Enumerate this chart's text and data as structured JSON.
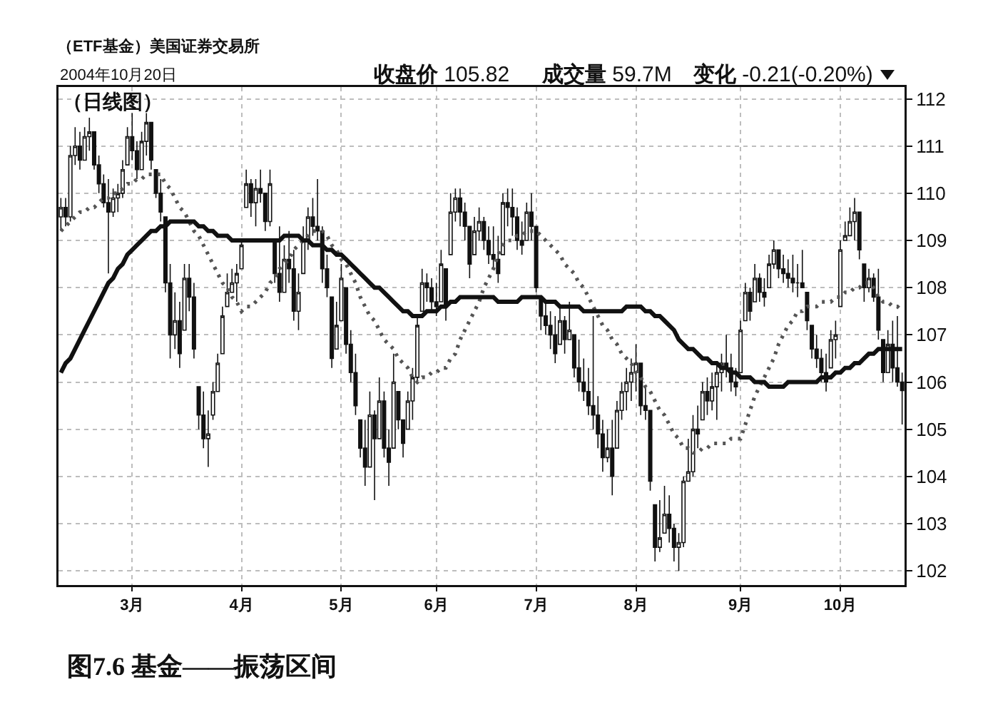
{
  "chart_data": {
    "type": "candlestick",
    "title": "（ETF基金）美国证券交易所",
    "subtitle": "（日线图）",
    "annotations": [
      "2004年10月20日",
      "收盘价 105.82",
      "成交量 59.7M",
      "变化 -0.21(-0.20%)",
      "图7.6 基金——振荡区间"
    ],
    "color": "#111111",
    "categories": [
      null,
      null,
      null,
      null,
      null,
      null,
      null,
      null,
      null,
      null,
      null,
      null,
      null,
      null,
      null,
      "3月",
      null,
      null,
      null,
      null,
      null,
      null,
      null,
      null,
      null,
      null,
      null,
      null,
      null,
      null,
      null,
      null,
      null,
      null,
      null,
      null,
      null,
      null,
      "4月",
      null,
      null,
      null,
      null,
      null,
      null,
      null,
      null,
      null,
      null,
      null,
      null,
      null,
      null,
      null,
      null,
      null,
      null,
      null,
      null,
      "5月",
      null,
      null,
      null,
      null,
      null,
      null,
      null,
      null,
      null,
      null,
      null,
      null,
      null,
      null,
      null,
      null,
      null,
      null,
      null,
      "6月",
      null,
      null,
      null,
      null,
      null,
      null,
      null,
      null,
      null,
      null,
      null,
      null,
      null,
      null,
      null,
      null,
      null,
      null,
      null,
      null,
      "7月",
      null,
      null,
      null,
      null,
      null,
      null,
      null,
      null,
      null,
      null,
      null,
      null,
      null,
      null,
      null,
      null,
      null,
      null,
      null,
      null,
      "8月",
      null,
      null,
      null,
      null,
      null,
      null,
      null,
      null,
      null,
      null,
      null,
      null,
      null,
      null,
      null,
      null,
      null,
      null,
      null,
      null,
      null,
      "9月",
      null,
      null,
      null,
      null,
      null,
      null,
      null,
      null,
      null,
      null,
      null,
      null,
      null,
      null,
      null,
      null,
      null,
      null,
      null,
      null,
      "10月",
      null,
      null,
      null,
      null,
      null,
      null,
      null,
      null,
      null,
      null,
      null,
      null,
      null
    ],
    "ohlc": [
      [
        109.5,
        109.9,
        109.2,
        109.7
      ],
      [
        109.7,
        109.9,
        109.3,
        109.5
      ],
      [
        109.5,
        111.0,
        109.4,
        110.8
      ],
      [
        110.8,
        111.4,
        110.6,
        111.0
      ],
      [
        111.0,
        111.3,
        110.5,
        110.7
      ],
      [
        110.7,
        111.4,
        110.7,
        111.2
      ],
      [
        111.2,
        111.6,
        110.9,
        111.3
      ],
      [
        111.3,
        111.3,
        110.5,
        110.6
      ],
      [
        110.6,
        110.8,
        110.0,
        110.2
      ],
      [
        110.2,
        110.4,
        109.7,
        109.8
      ],
      [
        109.8,
        110.3,
        108.3,
        109.6
      ],
      [
        109.6,
        110.1,
        109.5,
        109.9
      ],
      [
        109.9,
        110.2,
        109.6,
        110.0
      ],
      [
        110.0,
        110.7,
        109.9,
        110.5
      ],
      [
        110.6,
        111.4,
        110.6,
        111.2
      ],
      [
        111.2,
        111.7,
        110.7,
        110.9
      ],
      [
        110.9,
        111.1,
        110.3,
        110.5
      ],
      [
        110.5,
        111.3,
        110.5,
        111.1
      ],
      [
        111.1,
        111.7,
        110.8,
        111.5
      ],
      [
        111.5,
        111.5,
        110.5,
        110.7
      ],
      [
        110.5,
        110.5,
        109.9,
        110.0
      ],
      [
        110.0,
        110.3,
        109.4,
        109.6
      ],
      [
        109.5,
        109.5,
        107.9,
        108.1
      ],
      [
        108.1,
        108.5,
        106.5,
        107.0
      ],
      [
        107.0,
        107.9,
        106.7,
        107.3
      ],
      [
        107.3,
        107.7,
        106.3,
        106.6
      ],
      [
        107.1,
        108.5,
        107.1,
        108.2
      ],
      [
        108.2,
        108.5,
        107.5,
        107.8
      ],
      [
        107.8,
        108.1,
        106.5,
        106.7
      ],
      [
        105.9,
        105.9,
        105.0,
        105.3
      ],
      [
        105.3,
        105.8,
        104.6,
        104.8
      ],
      [
        104.8,
        105.4,
        104.2,
        104.9
      ],
      [
        105.3,
        106.0,
        105.2,
        105.8
      ],
      [
        105.8,
        106.6,
        105.8,
        106.4
      ],
      [
        106.6,
        107.6,
        106.6,
        107.4
      ],
      [
        107.6,
        108.3,
        107.6,
        107.9
      ],
      [
        107.9,
        108.4,
        107.9,
        108.1
      ],
      [
        108.1,
        108.5,
        107.7,
        108.3
      ],
      [
        108.4,
        109.0,
        108.4,
        108.9
      ],
      [
        109.7,
        110.5,
        109.7,
        110.2
      ],
      [
        110.2,
        110.3,
        109.5,
        109.8
      ],
      [
        109.8,
        110.3,
        109.3,
        110.1
      ],
      [
        110.1,
        110.5,
        109.8,
        110.0
      ],
      [
        110.0,
        110.0,
        109.2,
        109.4
      ],
      [
        109.4,
        110.5,
        109.3,
        110.2
      ],
      [
        109.0,
        109.0,
        108.1,
        108.3
      ],
      [
        108.3,
        109.3,
        107.7,
        107.9
      ],
      [
        107.9,
        108.9,
        107.9,
        108.6
      ],
      [
        108.6,
        109.2,
        108.1,
        108.4
      ],
      [
        108.4,
        108.8,
        107.3,
        107.5
      ],
      [
        107.5,
        108.3,
        107.1,
        107.9
      ],
      [
        108.3,
        109.3,
        108.3,
        109.0
      ],
      [
        109.0,
        109.7,
        108.8,
        109.5
      ],
      [
        109.5,
        109.9,
        109.1,
        109.3
      ],
      [
        109.3,
        110.3,
        109.0,
        109.2
      ],
      [
        109.2,
        109.3,
        108.1,
        108.4
      ],
      [
        108.4,
        108.7,
        107.8,
        108.0
      ],
      [
        107.8,
        107.8,
        106.3,
        106.5
      ],
      [
        106.7,
        107.7,
        106.7,
        107.2
      ],
      [
        107.3,
        108.5,
        107.3,
        108.2
      ],
      [
        108.0,
        108.0,
        106.6,
        106.8
      ],
      [
        106.8,
        107.1,
        106.0,
        106.2
      ],
      [
        106.2,
        106.6,
        105.3,
        105.5
      ],
      [
        105.2,
        105.2,
        104.4,
        104.6
      ],
      [
        104.6,
        105.2,
        103.8,
        104.2
      ],
      [
        104.2,
        105.8,
        104.2,
        105.3
      ],
      [
        105.3,
        105.4,
        103.5,
        104.8
      ],
      [
        104.8,
        106.1,
        104.8,
        105.6
      ],
      [
        105.6,
        105.8,
        104.4,
        104.6
      ],
      [
        104.6,
        105.0,
        103.8,
        104.3
      ],
      [
        104.6,
        106.6,
        104.6,
        106.0
      ],
      [
        105.8,
        105.8,
        105.0,
        105.2
      ],
      [
        105.2,
        105.2,
        104.4,
        104.7
      ],
      [
        105.0,
        105.8,
        105.0,
        105.6
      ],
      [
        105.6,
        106.3,
        105.2,
        106.1
      ],
      [
        106.1,
        107.4,
        106.0,
        107.2
      ],
      [
        107.5,
        108.4,
        107.5,
        108.1
      ],
      [
        108.1,
        108.3,
        107.7,
        108.0
      ],
      [
        108.0,
        108.2,
        107.5,
        107.7
      ],
      [
        107.7,
        108.1,
        107.4,
        107.6
      ],
      [
        107.7,
        108.8,
        107.7,
        108.5
      ],
      [
        108.4,
        108.4,
        107.3,
        107.6
      ],
      [
        108.7,
        110.0,
        108.7,
        109.6
      ],
      [
        109.6,
        110.1,
        109.4,
        109.9
      ],
      [
        109.9,
        110.1,
        109.3,
        109.6
      ],
      [
        109.6,
        109.8,
        109.0,
        109.3
      ],
      [
        109.3,
        109.3,
        108.2,
        108.5
      ],
      [
        108.7,
        109.5,
        108.7,
        109.2
      ],
      [
        109.2,
        109.7,
        109.0,
        109.4
      ],
      [
        109.4,
        109.5,
        108.8,
        109.0
      ],
      [
        109.0,
        109.3,
        108.5,
        108.7
      ],
      [
        108.7,
        109.3,
        108.4,
        108.6
      ],
      [
        108.6,
        109.1,
        108.1,
        108.3
      ],
      [
        108.7,
        110.0,
        108.7,
        109.8
      ],
      [
        109.8,
        110.1,
        109.3,
        109.7
      ],
      [
        109.7,
        110.1,
        109.1,
        109.5
      ],
      [
        109.5,
        109.7,
        108.8,
        109.0
      ],
      [
        109.0,
        109.4,
        108.7,
        108.9
      ],
      [
        109.0,
        109.8,
        109.0,
        109.6
      ],
      [
        109.6,
        110.0,
        109.0,
        109.3
      ],
      [
        109.3,
        109.3,
        107.9,
        108.0
      ],
      [
        107.8,
        107.8,
        107.1,
        107.4
      ],
      [
        107.4,
        107.7,
        107.0,
        107.2
      ],
      [
        107.2,
        107.5,
        106.7,
        107.0
      ],
      [
        107.0,
        107.4,
        106.4,
        106.6
      ],
      [
        106.8,
        107.6,
        106.8,
        107.3
      ],
      [
        107.3,
        107.4,
        106.6,
        106.9
      ],
      [
        106.9,
        107.7,
        106.9,
        107.1
      ],
      [
        107.0,
        107.0,
        106.1,
        106.3
      ],
      [
        106.3,
        106.9,
        105.8,
        106.0
      ],
      [
        106.0,
        106.5,
        105.6,
        105.8
      ],
      [
        105.8,
        106.3,
        105.3,
        105.5
      ],
      [
        105.5,
        107.4,
        105.0,
        105.3
      ],
      [
        105.3,
        105.7,
        104.6,
        104.9
      ],
      [
        104.9,
        105.2,
        104.1,
        104.4
      ],
      [
        104.4,
        105.0,
        104.3,
        104.6
      ],
      [
        104.6,
        105.2,
        103.6,
        104.0
      ],
      [
        104.6,
        105.6,
        104.6,
        105.4
      ],
      [
        105.4,
        106.0,
        105.2,
        105.8
      ],
      [
        105.8,
        106.3,
        105.4,
        106.0
      ],
      [
        106.0,
        106.5,
        105.6,
        106.2
      ],
      [
        106.2,
        106.8,
        105.8,
        106.4
      ],
      [
        106.4,
        106.4,
        105.3,
        105.5
      ],
      [
        105.5,
        105.9,
        105.2,
        105.4
      ],
      [
        105.4,
        105.4,
        103.7,
        103.9
      ],
      [
        103.4,
        103.4,
        102.2,
        102.5
      ],
      [
        102.5,
        103.5,
        102.4,
        102.7
      ],
      [
        102.8,
        103.8,
        102.8,
        103.2
      ],
      [
        103.2,
        103.6,
        102.6,
        102.9
      ],
      [
        102.9,
        103.0,
        102.2,
        102.5
      ],
      [
        102.5,
        102.8,
        102.0,
        102.6
      ],
      [
        102.6,
        104.0,
        102.5,
        103.9
      ],
      [
        103.9,
        104.8,
        103.9,
        104.1
      ],
      [
        104.1,
        105.3,
        104.0,
        105.0
      ],
      [
        105.0,
        105.5,
        104.6,
        104.9
      ],
      [
        105.2,
        106.0,
        105.2,
        105.8
      ],
      [
        105.8,
        106.1,
        105.3,
        105.6
      ],
      [
        105.6,
        106.2,
        105.4,
        105.9
      ],
      [
        105.9,
        106.4,
        105.2,
        106.2
      ],
      [
        106.2,
        106.6,
        105.8,
        106.4
      ],
      [
        106.4,
        107.0,
        106.1,
        106.3
      ],
      [
        106.3,
        106.6,
        105.8,
        106.0
      ],
      [
        106.0,
        106.3,
        105.7,
        105.9
      ],
      [
        106.2,
        107.3,
        106.2,
        107.1
      ],
      [
        107.3,
        108.1,
        107.3,
        107.9
      ],
      [
        107.9,
        108.0,
        107.3,
        107.5
      ],
      [
        107.7,
        108.5,
        107.7,
        108.2
      ],
      [
        108.2,
        108.3,
        107.7,
        107.9
      ],
      [
        107.9,
        108.2,
        107.6,
        107.8
      ],
      [
        108.0,
        108.7,
        108.0,
        108.5
      ],
      [
        108.5,
        109.0,
        108.4,
        108.8
      ],
      [
        108.8,
        108.8,
        108.2,
        108.4
      ],
      [
        108.4,
        108.7,
        108.1,
        108.3
      ],
      [
        108.3,
        108.6,
        108.0,
        108.2
      ],
      [
        108.2,
        108.7,
        107.9,
        108.1
      ],
      [
        108.1,
        108.5,
        107.8,
        108.1
      ],
      [
        108.1,
        108.8,
        108.0,
        108.0
      ],
      [
        107.9,
        107.9,
        107.1,
        107.3
      ],
      [
        107.2,
        107.2,
        106.5,
        106.7
      ],
      [
        106.7,
        107.0,
        106.3,
        106.5
      ],
      [
        106.5,
        106.7,
        106.0,
        106.2
      ],
      [
        106.2,
        106.6,
        105.8,
        106.0
      ],
      [
        106.3,
        107.1,
        106.3,
        106.9
      ],
      [
        106.9,
        107.3,
        106.5,
        107.0
      ],
      [
        107.6,
        109.0,
        107.6,
        108.8
      ],
      [
        109.0,
        109.4,
        109.0,
        109.1
      ],
      [
        109.1,
        109.7,
        109.1,
        109.4
      ],
      [
        109.4,
        109.9,
        109.0,
        109.6
      ],
      [
        109.6,
        109.6,
        108.6,
        108.8
      ],
      [
        108.5,
        108.5,
        107.7,
        108.0
      ],
      [
        108.0,
        108.4,
        107.9,
        108.2
      ],
      [
        108.2,
        108.3,
        107.7,
        107.8
      ],
      [
        107.8,
        108.4,
        106.9,
        107.1
      ],
      [
        106.9,
        106.9,
        106.0,
        106.2
      ],
      [
        106.2,
        107.1,
        106.2,
        106.8
      ],
      [
        106.8,
        107.3,
        106.0,
        106.3
      ],
      [
        106.3,
        107.4,
        105.9,
        106.0
      ],
      [
        106.0,
        106.2,
        105.1,
        105.82
      ]
    ],
    "series": [
      {
        "type": "line",
        "color": "#555555",
        "line_style": "dotted",
        "values": [
          109.2,
          109.3,
          109.4,
          109.5,
          109.6,
          109.6,
          109.7,
          109.7,
          109.8,
          109.9,
          109.9,
          110.0,
          110.0,
          110.1,
          110.2,
          110.2,
          110.3,
          110.3,
          110.4,
          110.4,
          110.4,
          110.4,
          110.2,
          110.1,
          109.9,
          109.7,
          109.6,
          109.4,
          109.2,
          109.1,
          108.9,
          108.7,
          108.5,
          108.3,
          108.1,
          108.0,
          107.8,
          107.7,
          107.5,
          107.6,
          107.6,
          107.7,
          107.8,
          107.9,
          108.1,
          108.2,
          108.4,
          108.5,
          108.6,
          108.8,
          108.9,
          109.0,
          109.1,
          109.2,
          109.2,
          109.2,
          109.1,
          108.9,
          108.8,
          108.6,
          108.5,
          108.3,
          108.1,
          107.8,
          107.6,
          107.4,
          107.3,
          107.1,
          106.9,
          106.8,
          106.7,
          106.5,
          106.4,
          106.3,
          106.1,
          106.0,
          106.1,
          106.1,
          106.2,
          106.2,
          106.3,
          106.3,
          106.5,
          106.6,
          106.9,
          107.1,
          107.3,
          107.5,
          107.7,
          108.0,
          108.2,
          108.4,
          108.7,
          108.9,
          109.0,
          109.0,
          109.1,
          109.1,
          109.2,
          109.2,
          109.2,
          109.1,
          109.0,
          108.9,
          108.8,
          108.7,
          108.5,
          108.4,
          108.3,
          108.1,
          108.0,
          107.8,
          107.6,
          107.4,
          107.2,
          107.1,
          106.9,
          106.8,
          106.6,
          106.5,
          106.4,
          106.2,
          106.1,
          105.9,
          105.8,
          105.6,
          105.4,
          105.3,
          105.1,
          104.9,
          104.8,
          104.6,
          104.6,
          104.5,
          104.5,
          104.6,
          104.6,
          104.7,
          104.7,
          104.7,
          104.7,
          104.8,
          104.8,
          104.8,
          105.1,
          105.4,
          105.7,
          105.9,
          106.1,
          106.3,
          106.5,
          106.8,
          107.0,
          107.2,
          107.3,
          107.5,
          107.5,
          107.6,
          107.6,
          107.6,
          107.7,
          107.7,
          107.7,
          107.8,
          107.8,
          107.9,
          107.9,
          108.0,
          108.0,
          108.1,
          108.1,
          108.0,
          107.8,
          107.7,
          107.7,
          107.6,
          107.6,
          107.5
        ]
      },
      {
        "type": "line",
        "color": "#111111",
        "line_style": "solid",
        "values": [
          106.2,
          106.4,
          106.5,
          106.7,
          106.9,
          107.1,
          107.3,
          107.5,
          107.7,
          107.9,
          108.1,
          108.2,
          108.4,
          108.5,
          108.7,
          108.8,
          108.9,
          109.0,
          109.1,
          109.2,
          109.2,
          109.3,
          109.3,
          109.4,
          109.4,
          109.4,
          109.4,
          109.4,
          109.4,
          109.3,
          109.3,
          109.2,
          109.2,
          109.1,
          109.1,
          109.1,
          109.0,
          109.0,
          109.0,
          109.0,
          109.0,
          109.0,
          109.0,
          109.0,
          109.0,
          109.0,
          109.0,
          109.1,
          109.1,
          109.1,
          109.1,
          109.0,
          109.0,
          108.9,
          108.9,
          108.9,
          108.8,
          108.8,
          108.7,
          108.7,
          108.6,
          108.5,
          108.4,
          108.3,
          108.2,
          108.1,
          108.0,
          108.0,
          107.9,
          107.8,
          107.7,
          107.6,
          107.5,
          107.5,
          107.4,
          107.4,
          107.4,
          107.5,
          107.5,
          107.5,
          107.6,
          107.6,
          107.7,
          107.7,
          107.8,
          107.8,
          107.8,
          107.8,
          107.8,
          107.8,
          107.8,
          107.8,
          107.7,
          107.7,
          107.7,
          107.7,
          107.7,
          107.8,
          107.8,
          107.8,
          107.8,
          107.8,
          107.7,
          107.7,
          107.7,
          107.6,
          107.6,
          107.6,
          107.6,
          107.6,
          107.5,
          107.5,
          107.5,
          107.5,
          107.5,
          107.5,
          107.5,
          107.5,
          107.5,
          107.6,
          107.6,
          107.6,
          107.6,
          107.5,
          107.5,
          107.4,
          107.4,
          107.3,
          107.2,
          107.1,
          106.9,
          106.8,
          106.7,
          106.7,
          106.6,
          106.5,
          106.5,
          106.4,
          106.4,
          106.3,
          106.3,
          106.2,
          106.2,
          106.1,
          106.1,
          106.1,
          106.0,
          106.0,
          106.0,
          105.9,
          105.9,
          105.9,
          105.9,
          106.0,
          106.0,
          106.0,
          106.0,
          106.0,
          106.0,
          106.0,
          106.1,
          106.1,
          106.1,
          106.2,
          106.2,
          106.3,
          106.3,
          106.4,
          106.4,
          106.5,
          106.6,
          106.6,
          106.7,
          106.7,
          106.7,
          106.7,
          106.7,
          106.7
        ]
      }
    ],
    "ylim": [
      101.7,
      112.25
    ],
    "yticks": [
      102,
      103,
      104,
      105,
      106,
      107,
      108,
      109,
      110,
      111,
      112
    ],
    "grid": true
  }
}
